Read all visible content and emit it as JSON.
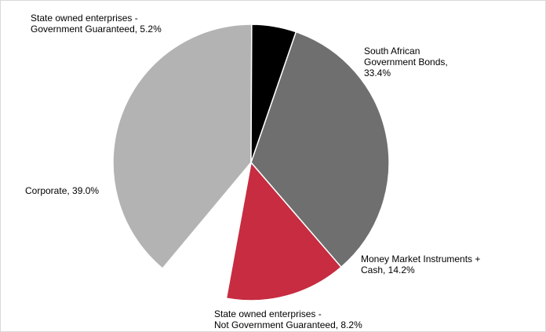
{
  "chart_data": {
    "type": "pie",
    "title": "",
    "start_angle_deg": 19,
    "direction": "clockwise",
    "slices": [
      {
        "label": "South African\nGovernment Bonds,\n33.4%",
        "value": 33.4,
        "color": "#6f6f6f"
      },
      {
        "label": "Money Market Instruments +\nCash, 14.2%",
        "value": 14.2,
        "color": "#c72c41"
      },
      {
        "label": "State owned enterprises -\nNot Government Guaranteed, 8.2%",
        "value": 8.2,
        "color": "#ffffff"
      },
      {
        "label": "Corporate, 39.0%",
        "value": 39.0,
        "color": "#b3b3b3"
      },
      {
        "label": "State owned enterprises -\nGovernment Guaranteed, 5.2%",
        "value": 5.2,
        "color": "#000000"
      }
    ]
  }
}
